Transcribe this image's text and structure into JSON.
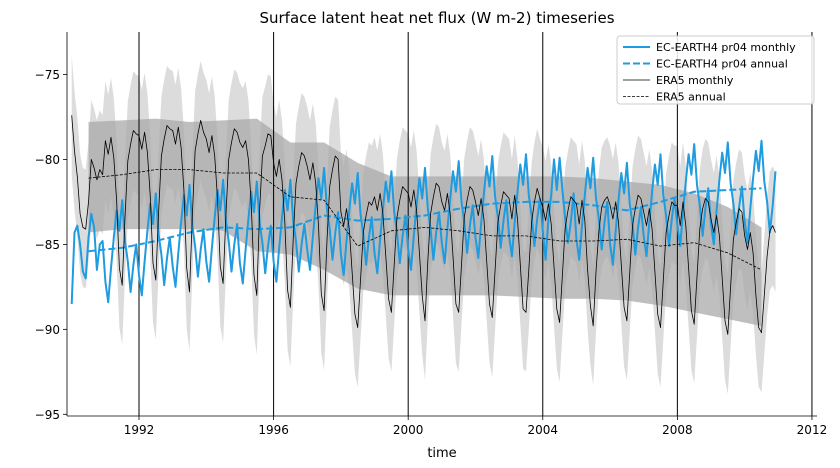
{
  "chart_data": {
    "type": "line",
    "title": "Surface latent heat net flux (W m-2) timeseries",
    "xlabel": "time",
    "ylabel": "",
    "xlim": [
      1989.86,
      2012.15
    ],
    "ylim": [
      -95.1,
      -72.5
    ],
    "xticks": [
      1992,
      1996,
      2000,
      2004,
      2008,
      2012
    ],
    "yticks": [
      -95,
      -90,
      -85,
      -80,
      -75
    ],
    "grid": "x-only",
    "legend_position": "top-right",
    "colors": {
      "model": "#1f9be0",
      "obs": "#000000",
      "monthly_band": "#dcdcdc",
      "annual_band": "#a9a9a9"
    },
    "monthly_start": 1990.0,
    "annual_x": [
      1990.5,
      1991.5,
      1992.5,
      1993.5,
      1994.5,
      1995.5,
      1996.5,
      1997.5,
      1998.5,
      1999.5,
      2000.5,
      2001.5,
      2002.5,
      2003.5,
      2004.5,
      2005.5,
      2006.5,
      2007.5,
      2008.5,
      2009.5,
      2010.5
    ],
    "series": [
      {
        "name": "EC-EARTH4 pr04 monthly",
        "style": "solid",
        "color": "#1f9be0",
        "width": 2,
        "values": [
          -88.5,
          -84.3,
          -83.9,
          -85.0,
          -86.6,
          -87.0,
          -84.6,
          -83.2,
          -84.0,
          -86.5,
          -85.0,
          -84.8,
          -87.2,
          -88.4,
          -86.4,
          -84.6,
          -83.0,
          -84.2,
          -82.4,
          -84.8,
          -86.0,
          -87.8,
          -86.2,
          -85.0,
          -86.8,
          -88.0,
          -86.0,
          -84.2,
          -82.6,
          -83.8,
          -82.0,
          -84.4,
          -85.6,
          -87.4,
          -85.8,
          -84.6,
          -86.3,
          -87.5,
          -85.5,
          -83.7,
          -82.1,
          -83.3,
          -81.5,
          -83.9,
          -85.1,
          -86.9,
          -85.3,
          -84.1,
          -86.0,
          -87.2,
          -85.2,
          -83.4,
          -81.8,
          -83.0,
          -81.2,
          -83.6,
          -84.8,
          -86.6,
          -85.0,
          -83.8,
          -86.1,
          -87.3,
          -85.3,
          -83.5,
          -81.9,
          -83.1,
          -81.3,
          -83.7,
          -84.9,
          -86.7,
          -85.1,
          -83.9,
          -86.0,
          -87.2,
          -85.2,
          -83.4,
          -81.8,
          -83.0,
          -81.2,
          -83.6,
          -84.8,
          -86.6,
          -85.0,
          -83.8,
          -85.3,
          -86.5,
          -84.5,
          -82.7,
          -81.1,
          -82.3,
          -80.5,
          -82.9,
          -84.1,
          -85.9,
          -84.3,
          -83.1,
          -85.6,
          -86.8,
          -84.8,
          -83.0,
          -81.4,
          -82.6,
          -80.8,
          -83.2,
          -84.4,
          -86.2,
          -84.6,
          -83.4,
          -85.5,
          -86.7,
          -84.7,
          -82.9,
          -81.3,
          -82.5,
          -80.7,
          -83.1,
          -84.3,
          -86.1,
          -84.5,
          -83.3,
          -85.3,
          -86.5,
          -84.5,
          -82.7,
          -81.1,
          -82.3,
          -80.5,
          -82.9,
          -84.1,
          -85.9,
          -84.3,
          -83.1,
          -84.9,
          -86.1,
          -84.1,
          -82.3,
          -80.7,
          -81.9,
          -80.1,
          -82.5,
          -83.7,
          -85.5,
          -83.9,
          -82.7,
          -84.6,
          -85.8,
          -83.8,
          -82.0,
          -80.4,
          -81.6,
          -79.8,
          -82.2,
          -83.4,
          -85.2,
          -83.6,
          -82.4,
          -84.5,
          -85.7,
          -83.7,
          -81.9,
          -80.3,
          -81.5,
          -79.7,
          -82.1,
          -83.3,
          -85.1,
          -83.5,
          -82.3,
          -84.2,
          -85.9,
          -83.5,
          -82.1,
          -80.0,
          -81.8,
          -79.9,
          -81.8,
          -83.5,
          -84.9,
          -83.7,
          -82.0,
          -84.7,
          -85.9,
          -83.9,
          -82.1,
          -80.5,
          -81.7,
          -79.9,
          -82.3,
          -83.5,
          -85.3,
          -83.7,
          -82.5,
          -85.0,
          -86.2,
          -84.2,
          -82.4,
          -80.8,
          -82.0,
          -80.2,
          -82.6,
          -83.8,
          -85.6,
          -84.0,
          -82.8,
          -84.5,
          -85.7,
          -83.7,
          -81.9,
          -80.3,
          -81.5,
          -79.7,
          -82.1,
          -83.3,
          -85.1,
          -83.5,
          -82.3,
          -83.9,
          -85.1,
          -83.1,
          -81.3,
          -79.7,
          -80.9,
          -79.1,
          -81.5,
          -82.7,
          -84.5,
          -82.9,
          -81.7,
          -83.8,
          -85.0,
          -83.0,
          -81.2,
          -79.6,
          -80.8,
          -79.0,
          -81.4,
          -82.6,
          -84.4,
          -82.8,
          -81.6,
          -83.7,
          -84.9,
          -82.9,
          -81.1,
          -79.5,
          -80.7,
          -78.9,
          -81.3,
          -82.5,
          -84.3,
          -82.7,
          -80.7
        ]
      },
      {
        "name": "EC-EARTH4 pr04 annual",
        "style": "dashed",
        "color": "#1f9be0",
        "width": 2,
        "values": [
          -85.4,
          -85.2,
          -84.8,
          -84.3,
          -84.0,
          -84.1,
          -84.0,
          -83.3,
          -83.6,
          -83.5,
          -83.3,
          -82.9,
          -82.6,
          -82.5,
          -82.5,
          -82.7,
          -83.0,
          -82.5,
          -81.9,
          -81.8,
          -81.7
        ]
      },
      {
        "name": "ERA5 monthly",
        "style": "solid",
        "color": "#000000",
        "width": 0.8,
        "values": [
          -77.4,
          -79.5,
          -81.0,
          -83.2,
          -84.0,
          -84.1,
          -82.5,
          -80.0,
          -80.5,
          -81.2,
          -80.6,
          -80.9,
          -78.9,
          -79.7,
          -78.7,
          -79.9,
          -82.4,
          -86.4,
          -87.4,
          -83.4,
          -80.1,
          -79.1,
          -78.3,
          -78.5,
          -78.6,
          -79.4,
          -78.4,
          -79.6,
          -82.1,
          -86.1,
          -87.1,
          -83.1,
          -79.8,
          -78.8,
          -78.0,
          -78.2,
          -78.3,
          -79.1,
          -78.1,
          -79.3,
          -81.8,
          -86.4,
          -87.8,
          -83.4,
          -79.5,
          -78.5,
          -77.7,
          -78.4,
          -78.8,
          -79.6,
          -78.6,
          -79.8,
          -82.3,
          -86.3,
          -87.3,
          -83.3,
          -80.0,
          -79.0,
          -78.2,
          -78.4,
          -79.0,
          -79.3,
          -78.9,
          -80.0,
          -82.6,
          -86.8,
          -88.0,
          -83.0,
          -79.8,
          -79.2,
          -78.5,
          -78.6,
          -80.2,
          -81.0,
          -80.0,
          -81.2,
          -83.7,
          -87.7,
          -88.7,
          -84.7,
          -81.4,
          -80.4,
          -79.6,
          -79.8,
          -80.4,
          -81.2,
          -80.2,
          -81.4,
          -83.9,
          -87.9,
          -88.9,
          -84.9,
          -81.6,
          -80.6,
          -79.8,
          -80.0,
          -83.1,
          -83.9,
          -82.9,
          -84.1,
          -86.6,
          -89.1,
          -89.9,
          -87.1,
          -84.3,
          -83.3,
          -82.5,
          -82.7,
          -82.2,
          -83.0,
          -82.0,
          -83.2,
          -85.7,
          -88.2,
          -89.0,
          -86.2,
          -83.4,
          -82.4,
          -81.6,
          -81.8,
          -82.0,
          -82.8,
          -81.8,
          -83.0,
          -85.5,
          -88.0,
          -89.5,
          -86.0,
          -83.2,
          -82.2,
          -81.4,
          -81.6,
          -82.5,
          -83.0,
          -82.0,
          -83.2,
          -85.7,
          -88.5,
          -89.0,
          -86.2,
          -83.4,
          -82.4,
          -81.6,
          -81.8,
          -82.5,
          -83.3,
          -82.3,
          -83.5,
          -86.0,
          -88.5,
          -89.3,
          -86.5,
          -83.7,
          -82.7,
          -81.9,
          -82.1,
          -82.3,
          -83.5,
          -82.1,
          -83.5,
          -86.2,
          -88.8,
          -89.0,
          -86.5,
          -83.7,
          -82.5,
          -81.7,
          -82.3,
          -82.8,
          -83.6,
          -82.6,
          -83.8,
          -86.3,
          -88.8,
          -89.6,
          -86.8,
          -84.0,
          -83.0,
          -82.2,
          -82.4,
          -82.6,
          -83.8,
          -82.4,
          -83.6,
          -86.5,
          -88.6,
          -89.8,
          -86.6,
          -84.2,
          -82.8,
          -82.4,
          -82.2,
          -82.7,
          -83.5,
          -82.5,
          -83.7,
          -86.2,
          -88.7,
          -89.5,
          -86.7,
          -83.9,
          -82.9,
          -82.1,
          -82.3,
          -83.1,
          -83.9,
          -82.9,
          -84.1,
          -86.6,
          -89.1,
          -89.9,
          -87.1,
          -84.3,
          -83.3,
          -82.5,
          -82.7,
          -82.7,
          -83.9,
          -82.5,
          -83.9,
          -86.4,
          -88.9,
          -89.7,
          -86.9,
          -84.1,
          -82.9,
          -82.3,
          -82.5,
          -83.5,
          -84.3,
          -83.3,
          -84.5,
          -87.0,
          -89.5,
          -90.3,
          -87.5,
          -84.7,
          -83.7,
          -82.9,
          -83.1,
          -84.5,
          -85.3,
          -84.3,
          -85.5,
          -88.0,
          -89.9,
          -90.2,
          -88.0,
          -85.7,
          -84.2,
          -83.9,
          -84.3
        ]
      },
      {
        "name": "ERA5 annual",
        "style": "dashed-thin",
        "color": "#000000",
        "width": 0.8,
        "values": [
          -81.1,
          -80.9,
          -80.6,
          -80.6,
          -80.8,
          -80.8,
          -82.2,
          -82.4,
          -85.1,
          -84.2,
          -84.0,
          -84.2,
          -84.5,
          -84.5,
          -84.8,
          -84.8,
          -84.7,
          -85.1,
          -84.9,
          -85.5,
          -86.5
        ]
      }
    ],
    "annual_band": {
      "upper": [
        -77.8,
        -77.7,
        -77.6,
        -77.8,
        -77.7,
        -77.6,
        -79.0,
        -79.0,
        -80.2,
        -81.0,
        -81.0,
        -81.0,
        -81.0,
        -81.0,
        -81.0,
        -81.1,
        -81.3,
        -81.5,
        -82.0,
        -82.8,
        -84.0
      ],
      "lower": [
        -84.3,
        -84.1,
        -84.1,
        -84.1,
        -84.2,
        -85.4,
        -85.6,
        -86.5,
        -87.6,
        -88.0,
        -88.0,
        -88.0,
        -88.0,
        -88.1,
        -88.2,
        -88.2,
        -88.3,
        -88.6,
        -89.0,
        -89.4,
        -89.8
      ]
    },
    "monthly_band_halfwidth": 3.5
  }
}
